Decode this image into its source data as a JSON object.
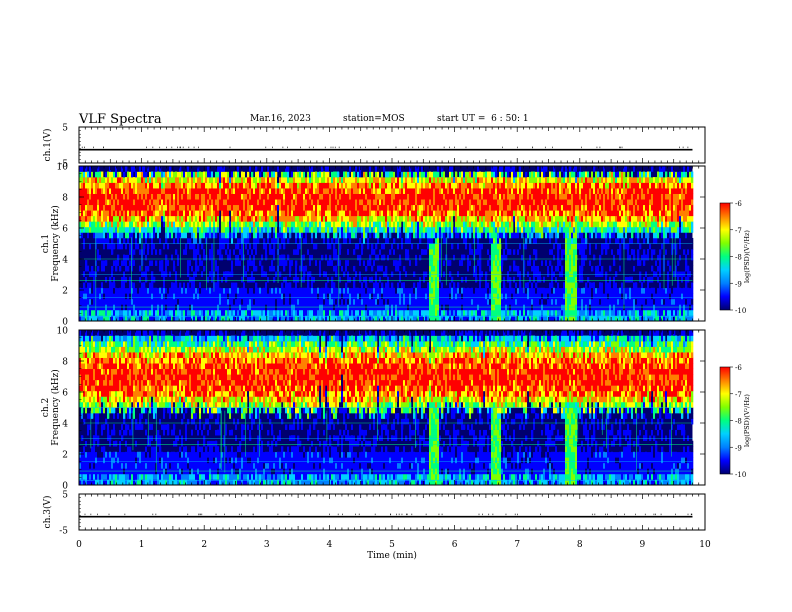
{
  "header": {
    "title": "VLF Spectra",
    "date": "Mar.16, 2023",
    "station": "station=MOS",
    "start": "start UT =  6 : 50: 1"
  },
  "colors": {
    "scale": [
      "#00006e",
      "#0000ff",
      "#0080ff",
      "#00d0ff",
      "#00ff80",
      "#80ff00",
      "#ffff00",
      "#ff8000",
      "#ff0000",
      "#ffffff"
    ]
  },
  "chart_data": [
    {
      "type": "line",
      "panel": "ch1-voltage",
      "ylabel": "ch.1(V)",
      "yticks": [
        "5",
        "-5"
      ],
      "ylim": [
        -5,
        5
      ],
      "xlim": [
        0,
        10
      ],
      "series": [
        {
          "x": [
            0,
            9.8
          ],
          "y": [
            0,
            0
          ]
        }
      ]
    },
    {
      "type": "heatmap",
      "panel": "ch1-spectrogram",
      "ylabel": "ch.1 Frequency (kHz)",
      "yticks": [
        "0",
        "2",
        "4",
        "6",
        "8",
        "10"
      ],
      "ylim": [
        0,
        10
      ],
      "xlim": [
        0,
        9.8
      ],
      "band_khz": [
        5.4,
        9.5
      ],
      "peak_khz": 7.8,
      "bursts_min": [
        5.65,
        6.65,
        7.85
      ],
      "colorbar": {
        "label": "log(PSD)(V²/Hz)",
        "ticks": [
          "-6",
          "-7",
          "-8",
          "-9",
          "-10"
        ],
        "range": [
          -10,
          -6
        ]
      }
    },
    {
      "type": "heatmap",
      "panel": "ch2-spectrogram",
      "ylabel": "ch.2 Frequency (kHz)",
      "yticks": [
        "0",
        "2",
        "4",
        "6",
        "8",
        "10"
      ],
      "ylim": [
        0,
        10
      ],
      "xlim": [
        0,
        9.8
      ],
      "band_khz": [
        4.8,
        9.6
      ],
      "peak_khz": 7.0,
      "bursts_min": [
        5.65,
        6.65,
        7.85
      ],
      "colorbar": {
        "label": "log(PSD)(V²/Hz)",
        "ticks": [
          "-6",
          "-7",
          "-8",
          "-9",
          "-10"
        ],
        "range": [
          -10,
          -6
        ]
      }
    },
    {
      "type": "line",
      "panel": "ch3-voltage",
      "ylabel": "ch.3(V)",
      "yticks": [
        "5",
        "-5"
      ],
      "ylim": [
        -5,
        5
      ],
      "xlim": [
        0,
        10
      ],
      "series": [
        {
          "x": [
            0,
            9.8
          ],
          "y": [
            0,
            0
          ]
        }
      ]
    }
  ],
  "xaxis": {
    "label": "Time (min)",
    "ticks": [
      "0",
      "1",
      "2",
      "3",
      "4",
      "5",
      "6",
      "7",
      "8",
      "9",
      "10"
    ],
    "range": [
      0,
      10
    ]
  }
}
